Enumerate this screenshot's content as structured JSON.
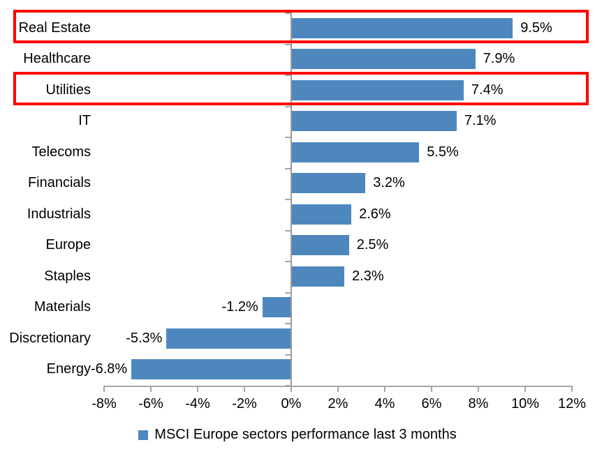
{
  "chart_data": {
    "type": "bar",
    "orientation": "horizontal",
    "title": "",
    "categories": [
      "Real Estate",
      "Healthcare",
      "Utilities",
      "IT",
      "Telecoms",
      "Financials",
      "Industrials",
      "Europe",
      "Staples",
      "Materials",
      "Discretionary",
      "Energy"
    ],
    "values": [
      9.5,
      7.9,
      7.4,
      7.1,
      5.5,
      3.2,
      2.6,
      2.5,
      2.3,
      -1.2,
      -5.3,
      -6.8
    ],
    "data_labels": [
      "9.5%",
      "7.9%",
      "7.4%",
      "7.1%",
      "5.5%",
      "3.2%",
      "2.6%",
      "2.5%",
      "2.3%",
      "-1.2%",
      "-5.3%",
      "-6.8%"
    ],
    "x_tick_labels": [
      "-8%",
      "-6%",
      "-4%",
      "-2%",
      "0%",
      "2%",
      "4%",
      "6%",
      "8%",
      "10%",
      "12%"
    ],
    "x_tick_values": [
      -8,
      -6,
      -4,
      -2,
      0,
      2,
      4,
      6,
      8,
      10,
      12
    ],
    "xlim": [
      -8,
      12
    ],
    "grid": false,
    "legend": "MSCI Europe sectors performance last 3 months",
    "legend_position": "bottom-center",
    "highlighted_categories": [
      "Real Estate",
      "Utilities"
    ],
    "colors": {
      "bar": "#4e87be",
      "axis": "#a6a6a6",
      "zero_line": "#9a9a9a",
      "highlight_border": "#ff0000",
      "text": "#000000"
    }
  }
}
